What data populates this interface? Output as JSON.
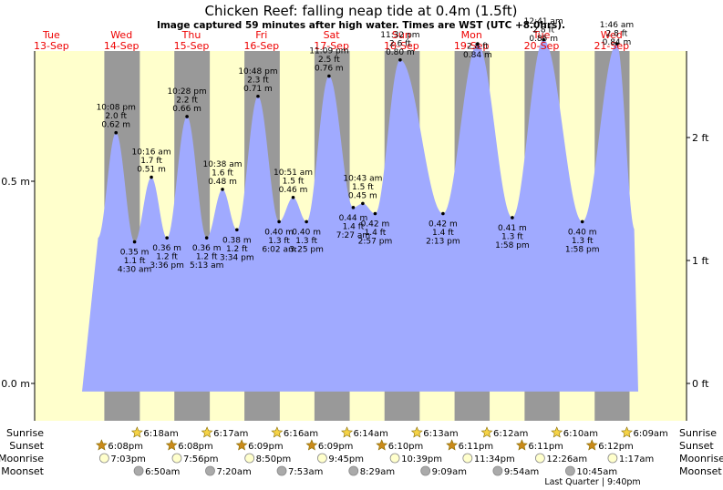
{
  "colors": {
    "day": "#ffffcc",
    "night": "#999999",
    "water": "#a0aaff",
    "day_label": "#ee0000",
    "text": "#000000",
    "sun_fill": "#f5d347",
    "sun_stroke": "#8a6d00",
    "sunset_fill": "#c98a1a",
    "moonrise_fill": "#ffffcc",
    "moonset_fill": "#aaaaaa"
  },
  "title": "Chicken Reef: falling  neap tide at 0.4m (1.5ft)",
  "subtitle": "Image captured 59 minutes after high water. Times are WST (UTC +8.0hrs).",
  "chart_data": {
    "type": "area",
    "x_unit": "hours since Tue 13-Sep 00:00 WST",
    "ylim_m": [
      -0.04,
      0.98
    ],
    "yticks_m": [
      {
        "value": 0.0,
        "label": "0.0 m"
      },
      {
        "value": 0.5,
        "label": "0.5 m"
      }
    ],
    "yticks_ft": [
      {
        "value": 0,
        "label": "0 ft"
      },
      {
        "value": 1,
        "label": "1 ft"
      },
      {
        "value": 2,
        "label": "2 ft"
      }
    ],
    "day_labels": [
      {
        "day": "Tue",
        "date": "13-Sep"
      },
      {
        "day": "Wed",
        "date": "14-Sep"
      },
      {
        "day": "Thu",
        "date": "15-Sep"
      },
      {
        "day": "Fri",
        "date": "16-Sep"
      },
      {
        "day": "Sat",
        "date": "17-Sep"
      },
      {
        "day": "Sun",
        "date": "18-Sep"
      },
      {
        "day": "Mon",
        "date": "19-Sep"
      },
      {
        "day": "Tue",
        "date": "20-Sep"
      },
      {
        "day": "Wed",
        "date": "21-Sep"
      }
    ],
    "tides": [
      {
        "type": "high",
        "time": "10:08 pm",
        "ft": "2.0 ft",
        "m": "0.62 m",
        "height": 0.62
      },
      {
        "type": "low",
        "time": "4:30 am",
        "ft": "1.1 ft",
        "m": "0.35 m",
        "height": 0.35
      },
      {
        "type": "high",
        "time": "10:16 am",
        "ft": "1.7 ft",
        "m": "0.51 m",
        "height": 0.51
      },
      {
        "type": "low",
        "time": "3:36 pm",
        "ft": "1.2 ft",
        "m": "0.36 m",
        "height": 0.36
      },
      {
        "type": "high",
        "time": "10:28 pm",
        "ft": "2.2 ft",
        "m": "0.66 m",
        "height": 0.66
      },
      {
        "type": "low",
        "time": "5:13 am",
        "ft": "1.2 ft",
        "m": "0.36 m",
        "height": 0.36
      },
      {
        "type": "high",
        "time": "10:38 am",
        "ft": "1.6 ft",
        "m": "0.48 m",
        "height": 0.48
      },
      {
        "type": "low",
        "time": "3:34 pm",
        "ft": "1.2 ft",
        "m": "0.38 m",
        "height": 0.38
      },
      {
        "type": "high",
        "time": "10:48 pm",
        "ft": "2.3 ft",
        "m": "0.71 m",
        "height": 0.71
      },
      {
        "type": "low",
        "time": "6:02 am",
        "ft": "1.3 ft",
        "m": "0.40 m",
        "height": 0.4
      },
      {
        "type": "high",
        "time": "10:51 am",
        "ft": "1.5 ft",
        "m": "0.46 m",
        "height": 0.46
      },
      {
        "type": "low",
        "time": "3:25 pm",
        "ft": "1.3 ft",
        "m": "0.40 m",
        "height": 0.4
      },
      {
        "type": "high",
        "time": "11:09 pm",
        "ft": "2.5 ft",
        "m": "0.76 m",
        "height": 0.76
      },
      {
        "type": "low",
        "time": "7:27 am",
        "ft": "1.4 ft",
        "m": "0.44 m",
        "height": 0.435
      },
      {
        "type": "high",
        "time": "10:43 am",
        "ft": "1.5 ft",
        "m": "0.45 m",
        "height": 0.445
      },
      {
        "type": "low",
        "time": "2:57 pm",
        "ft": "1.4 ft",
        "m": "0.42 m",
        "height": 0.42
      },
      {
        "type": "high",
        "time": "11:32 pm",
        "ft": "2.6 ft",
        "m": "0.80 m",
        "height": 0.8
      },
      {
        "type": "low",
        "time": "2:13 pm",
        "ft": "1.4 ft",
        "m": "0.42 m",
        "height": 0.42
      },
      {
        "type": "high",
        "time": "",
        "ft": "2.8 ft",
        "m": "0.84 m",
        "height": 0.84
      },
      {
        "type": "low",
        "time": "1:58 pm",
        "ft": "1.3 ft",
        "m": "0.41 m",
        "height": 0.41
      },
      {
        "type": "high",
        "time": "12:41 am",
        "ft": "2.8 ft",
        "m": "0.85 m",
        "height": 0.85
      },
      {
        "type": "low",
        "time": "1:58 pm",
        "ft": "1.3 ft",
        "m": "0.40 m",
        "height": 0.4
      },
      {
        "type": "high",
        "time": "1:46 am",
        "ft": "2.8 ft",
        "m": "0.84 m",
        "height": 0.84
      }
    ],
    "sunrise": [
      "6:18am",
      "6:17am",
      "6:16am",
      "6:14am",
      "6:13am",
      "6:12am",
      "6:10am",
      "6:09am"
    ],
    "sunset": [
      "6:08pm",
      "6:08pm",
      "6:09pm",
      "6:09pm",
      "6:10pm",
      "6:11pm",
      "6:11pm",
      "6:12pm"
    ],
    "moonrise": [
      "7:03pm",
      "7:56pm",
      "8:50pm",
      "9:45pm",
      "10:39pm",
      "11:34pm",
      "12:26am",
      "1:17am"
    ],
    "moonset": [
      "6:50am",
      "7:20am",
      "7:53am",
      "8:29am",
      "9:09am",
      "9:54am",
      "10:45am"
    ],
    "row_labels": {
      "sunrise": "Sunrise",
      "sunset": "Sunset",
      "moonrise": "Moonrise",
      "moonset": "Moonset"
    },
    "moon_phase": "Last Quarter | 9:40pm"
  }
}
